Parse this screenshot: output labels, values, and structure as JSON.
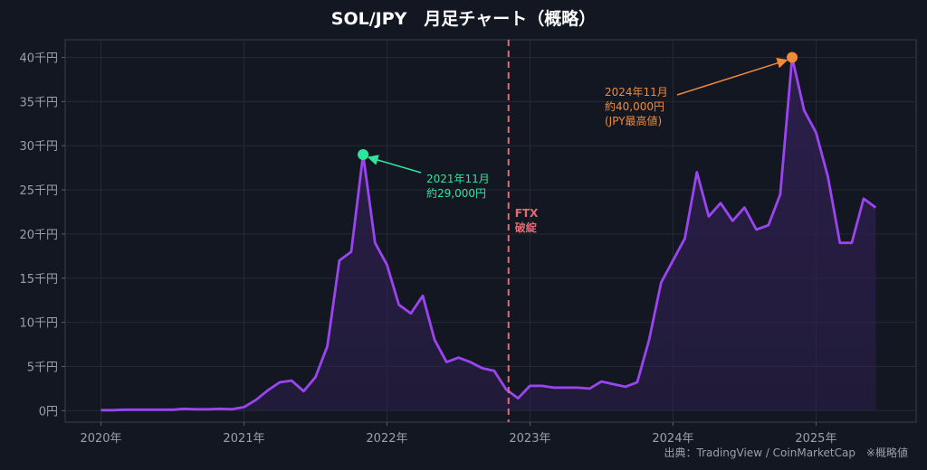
{
  "chart_data": {
    "type": "area",
    "title": "SOL/JPY　月足チャート（概略）",
    "xlabel": "",
    "ylabel": "",
    "xlim": [
      2019.75,
      2025.7
    ],
    "ylim": [
      -1300,
      42000
    ],
    "y_ticks": [
      0,
      5000,
      10000,
      15000,
      20000,
      25000,
      30000,
      35000,
      40000
    ],
    "y_tick_labels": [
      "0円",
      "5千円",
      "10千円",
      "15千円",
      "20千円",
      "25千円",
      "30千円",
      "35千円",
      "40千円"
    ],
    "x_ticks": [
      2020,
      2021,
      2022,
      2023,
      2024,
      2025
    ],
    "x_tick_labels": [
      "2020年",
      "2021年",
      "2022年",
      "2023年",
      "2024年",
      "2025年"
    ],
    "grid": true,
    "series": [
      {
        "name": "",
        "color": "#9b45f0",
        "x": [
          2020.0,
          2020.083,
          2020.167,
          2020.25,
          2020.333,
          2020.417,
          2020.5,
          2020.583,
          2020.667,
          2020.75,
          2020.833,
          2020.917,
          2021.0,
          2021.083,
          2021.167,
          2021.25,
          2021.333,
          2021.417,
          2021.5,
          2021.583,
          2021.667,
          2021.75,
          2021.833,
          2021.917,
          2022.0,
          2022.083,
          2022.167,
          2022.25,
          2022.333,
          2022.417,
          2022.5,
          2022.583,
          2022.667,
          2022.75,
          2022.833,
          2022.917,
          2023.0,
          2023.083,
          2023.167,
          2023.25,
          2023.333,
          2023.417,
          2023.5,
          2023.583,
          2023.667,
          2023.75,
          2023.833,
          2023.917,
          2024.0,
          2024.083,
          2024.167,
          2024.25,
          2024.333,
          2024.417,
          2024.5,
          2024.583,
          2024.667,
          2024.75,
          2024.833,
          2024.917,
          2025.0,
          2025.083,
          2025.167,
          2025.25,
          2025.333,
          2025.417
        ],
        "values": [
          50,
          50,
          100,
          100,
          100,
          100,
          100,
          200,
          150,
          150,
          200,
          150,
          400,
          1200,
          2300,
          3200,
          3400,
          2200,
          3800,
          7300,
          17000,
          18000,
          29000,
          19000,
          16500,
          12000,
          11000,
          13000,
          8000,
          5500,
          6000,
          5500,
          4800,
          4500,
          2400,
          1400,
          2800,
          2800,
          2600,
          2600,
          2600,
          2500,
          3300,
          3000,
          2700,
          3200,
          8000,
          14500,
          17000,
          19500,
          27000,
          22000,
          23500,
          21500,
          23000,
          20500,
          21000,
          24500,
          40000,
          34000,
          31500,
          26500,
          19000,
          19000,
          24000,
          23000
        ]
      }
    ],
    "events": [
      {
        "x": 2022.85,
        "label_line1": "FTX",
        "label_line2": "破綻",
        "color": "#e06c75"
      }
    ],
    "annotations": [
      {
        "x": 2021.833,
        "y": 29000,
        "line1": "2021年11月",
        "line2": "約29,000円",
        "line3": "",
        "color": "#2ee59d"
      },
      {
        "x": 2024.833,
        "y": 40000,
        "line1": "2024年11月",
        "line2": "約40,000円",
        "line3": "(JPY最高値)",
        "color": "#ef8a3b"
      }
    ],
    "source_note": "出典：TradingView / CoinMarketCap　※概略値"
  },
  "colors": {
    "background": "#131722",
    "line": "#9b45f0",
    "area": "#2e1f4f"
  }
}
